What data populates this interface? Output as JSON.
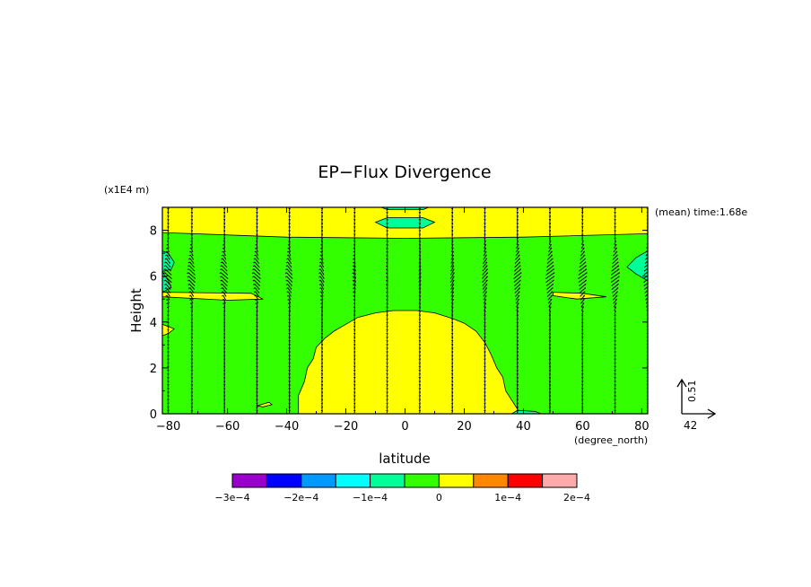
{
  "chart_data": {
    "type": "heatmap",
    "title": "EP−Flux Divergence",
    "xlabel": "latitude",
    "ylabel": "Height",
    "x_units": "(degree_north)",
    "y_units": "(x1E4 m)",
    "annotation": "(mean) time:1.68e",
    "xlim": [
      -82,
      82
    ],
    "ylim": [
      0,
      9
    ],
    "x_ticks": [
      -80,
      -60,
      -40,
      -20,
      0,
      20,
      40,
      60,
      80
    ],
    "y_ticks": [
      0,
      2,
      4,
      6,
      8
    ],
    "x_tick_labels": [
      "−80",
      "−60",
      "−40",
      "−20",
      "0",
      "20",
      "40",
      "60",
      "80"
    ],
    "y_tick_labels": [
      "0",
      "2",
      "4",
      "6",
      "8"
    ],
    "background_value": "green",
    "regions": [
      {
        "name": "upper-band",
        "color": "#ffff00",
        "poly": [
          [
            -82,
            9
          ],
          [
            82,
            9
          ],
          [
            82,
            7.85
          ],
          [
            40,
            7.7
          ],
          [
            0,
            7.65
          ],
          [
            -40,
            7.7
          ],
          [
            -82,
            7.9
          ]
        ]
      },
      {
        "name": "tropical-dome",
        "color": "#ffff00",
        "poly": [
          [
            -36,
            0
          ],
          [
            -36,
            0.8
          ],
          [
            -34,
            1.4
          ],
          [
            -33,
            2.0
          ],
          [
            -31,
            2.4
          ],
          [
            -30,
            2.9
          ],
          [
            -27,
            3.3
          ],
          [
            -24,
            3.6
          ],
          [
            -20,
            3.9
          ],
          [
            -16,
            4.2
          ],
          [
            -10,
            4.4
          ],
          [
            -4,
            4.5
          ],
          [
            4,
            4.5
          ],
          [
            10,
            4.4
          ],
          [
            16,
            4.15
          ],
          [
            20,
            3.95
          ],
          [
            24,
            3.6
          ],
          [
            27,
            3.1
          ],
          [
            29,
            2.6
          ],
          [
            31,
            2.0
          ],
          [
            33,
            1.6
          ],
          [
            34,
            1.0
          ],
          [
            36,
            0.6
          ],
          [
            38,
            0.2
          ],
          [
            38,
            0
          ]
        ]
      },
      {
        "name": "west-edge-top",
        "color": "#00ff99",
        "poly": [
          [
            -82,
            7.1
          ],
          [
            -80,
            7.0
          ],
          [
            -78,
            6.6
          ],
          [
            -79,
            6.3
          ],
          [
            -82,
            6.2
          ]
        ]
      },
      {
        "name": "west-edge-mid",
        "color": "#00ff99",
        "poly": [
          [
            -82,
            6.2
          ],
          [
            -80,
            5.8
          ],
          [
            -79,
            5.5
          ],
          [
            -82,
            5.3
          ]
        ]
      },
      {
        "name": "east-edge",
        "color": "#00ff99",
        "poly": [
          [
            82,
            7.1
          ],
          [
            78,
            6.8
          ],
          [
            75,
            6.4
          ],
          [
            78,
            6.1
          ],
          [
            82,
            5.8
          ]
        ]
      },
      {
        "name": "west-strip",
        "color": "#ffff00",
        "poly": [
          [
            -82,
            5.3
          ],
          [
            -52,
            5.25
          ],
          [
            -48,
            5.0
          ],
          [
            -60,
            4.95
          ],
          [
            -82,
            5.1
          ]
        ]
      },
      {
        "name": "east-strip",
        "color": "#ffff00",
        "poly": [
          [
            50,
            5.3
          ],
          [
            60,
            5.25
          ],
          [
            68,
            5.1
          ],
          [
            58,
            5.0
          ],
          [
            50,
            5.15
          ]
        ]
      },
      {
        "name": "west-blob-low",
        "color": "#ffff00",
        "poly": [
          [
            -82,
            3.9
          ],
          [
            -78,
            3.7
          ],
          [
            -80,
            3.5
          ],
          [
            -82,
            3.4
          ]
        ]
      },
      {
        "name": "south-sliver",
        "color": "#ffff00",
        "poly": [
          [
            -50,
            0.35
          ],
          [
            -46,
            0.5
          ],
          [
            -45,
            0.4
          ],
          [
            -48,
            0.3
          ]
        ]
      },
      {
        "name": "top-spot-1",
        "color": "#00ff99",
        "poly": [
          [
            -8,
            9
          ],
          [
            8,
            9
          ],
          [
            6,
            8.9
          ],
          [
            -6,
            8.9
          ]
        ]
      },
      {
        "name": "top-spot-2",
        "color": "#00ff99",
        "poly": [
          [
            -10,
            8.35
          ],
          [
            -6,
            8.55
          ],
          [
            6,
            8.55
          ],
          [
            10,
            8.35
          ],
          [
            6,
            8.1
          ],
          [
            -6,
            8.1
          ]
        ]
      },
      {
        "name": "bottom-edge-east",
        "color": "#00ff99",
        "poly": [
          [
            36,
            0
          ],
          [
            46,
            0
          ],
          [
            44,
            0.1
          ],
          [
            38,
            0.15
          ]
        ]
      }
    ],
    "vector_columns_x": [
      -80,
      -72,
      -61,
      -50,
      -39,
      -28,
      -17,
      -6,
      5,
      16,
      27,
      38,
      49,
      60,
      71,
      82
    ],
    "vector_reference": {
      "x_label": "42",
      "y_label": "0.51"
    },
    "colorbar": {
      "colors": [
        "#9900cc",
        "#0000ff",
        "#0099ff",
        "#00ffff",
        "#00ff99",
        "#33ff00",
        "#ffff00",
        "#ff8800",
        "#ff0000",
        "#ffaaaa"
      ],
      "labels": [
        "−3e−4",
        "−2e−4",
        "−1e−4",
        "0",
        "1e−4",
        "2e−4"
      ],
      "label_at_boundary": [
        0,
        2,
        4,
        6,
        8,
        10
      ]
    },
    "grid": false,
    "legend": "colorbar-bottom"
  }
}
